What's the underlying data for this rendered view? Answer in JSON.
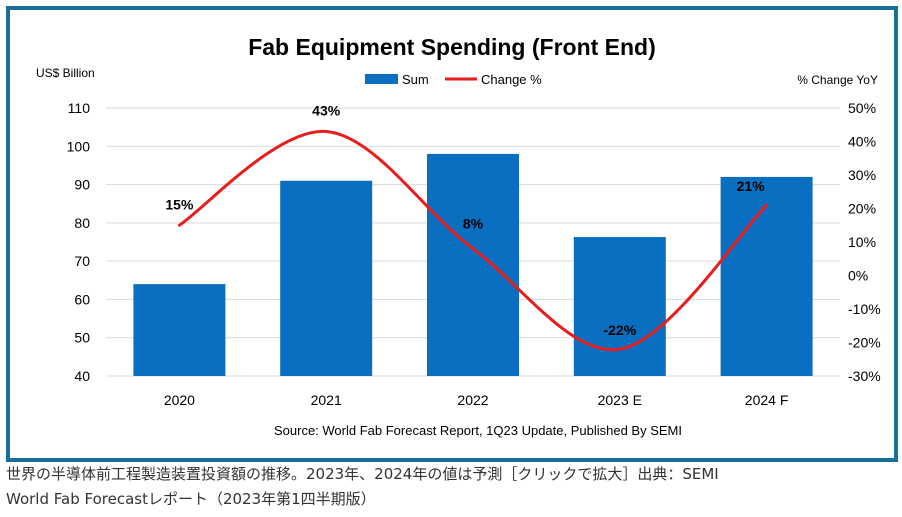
{
  "chart_data": {
    "type": "bar",
    "title": "Fab Equipment Spending (Front End)",
    "ylabel": "US$ Billion",
    "y2label": "% Change YoY",
    "categories": [
      "2020",
      "2021",
      "2022",
      "2023 E",
      "2024 F"
    ],
    "series": [
      {
        "name": "Sum",
        "type": "bar",
        "axis": "left",
        "values": [
          64,
          91,
          98,
          76.3,
          92
        ]
      },
      {
        "name": "Change %",
        "type": "line",
        "axis": "right",
        "values": [
          15,
          43,
          8,
          -22,
          21
        ],
        "labels": [
          "15%",
          "43%",
          "8%",
          "-22%",
          "21%"
        ]
      }
    ],
    "ylim": [
      40,
      110
    ],
    "yticks": [
      40,
      50,
      60,
      70,
      80,
      90,
      100,
      110
    ],
    "y2lim": [
      -30,
      50
    ],
    "y2ticks": [
      "-30%",
      "-20%",
      "-10%",
      "0%",
      "10%",
      "20%",
      "30%",
      "40%",
      "50%"
    ],
    "y2tick_values": [
      -30,
      -20,
      -10,
      0,
      10,
      20,
      30,
      40,
      50
    ],
    "grid": true,
    "legend": "top-center",
    "source": "Source: World Fab Forecast Report, 1Q23 Update, Published By SEMI",
    "colors": {
      "bar": "#0a6fc0",
      "line": "#e81d1d",
      "frame": "#1a6f96",
      "grid": "#d9d9d9"
    }
  },
  "caption": {
    "line1": "世界の半導体前工程製造装置投資額の推移。2023年、2024年の値は予測［クリックで拡大］出典：SEMI",
    "line2": "World Fab Forecastレポート（2023年第1四半期版）"
  }
}
